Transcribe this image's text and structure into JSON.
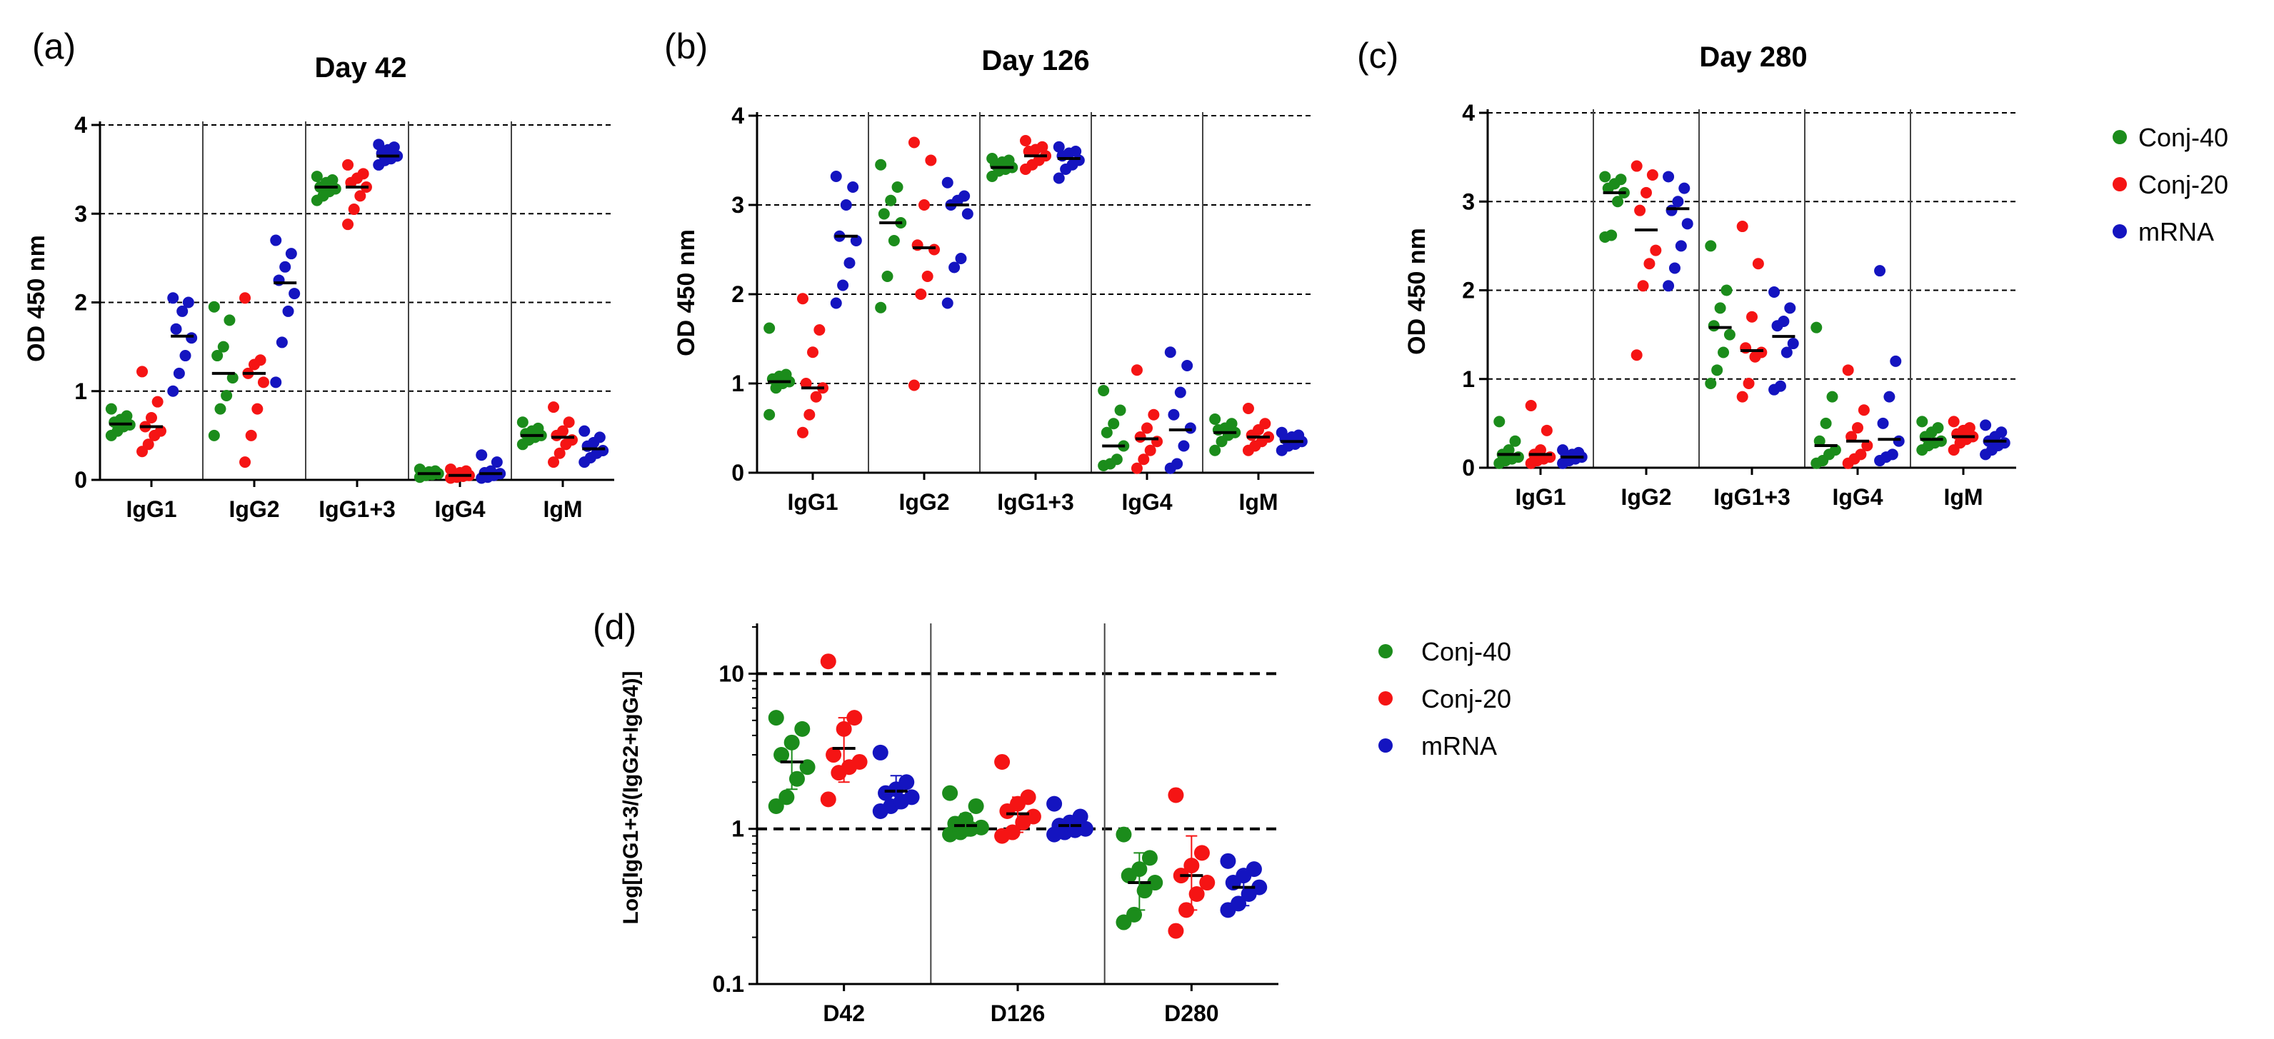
{
  "colors": {
    "Conj-40": "#1b8c1b",
    "Conj-20": "#f51414",
    "mRNA": "#1414c0"
  },
  "legend": {
    "entries": [
      "Conj-40",
      "Conj-20",
      "mRNA"
    ]
  },
  "chart_data": [
    {
      "letter": "(a)",
      "type": "scatter",
      "title": "Day 42",
      "xlabel": "",
      "ylabel": "OD 450 nm",
      "ylim": [
        0,
        4
      ],
      "yticks": [
        "0",
        "1",
        "2",
        "3",
        "4"
      ],
      "yscale": "linear",
      "categories": [
        "IgG1",
        "IgG2",
        "IgG1+3",
        "IgG4",
        "IgM"
      ],
      "series": [
        {
          "name": "Conj-40",
          "means": [
            0.63,
            1.2,
            3.3,
            0.07,
            0.5
          ],
          "values": [
            [
              0.5,
              0.55,
              0.6,
              0.62,
              0.65,
              0.68,
              0.72,
              0.8
            ],
            [
              0.5,
              0.8,
              0.95,
              1.15,
              1.4,
              1.5,
              1.8,
              1.95
            ],
            [
              3.15,
              3.2,
              3.25,
              3.28,
              3.3,
              3.35,
              3.38,
              3.42
            ],
            [
              0.03,
              0.05,
              0.06,
              0.07,
              0.08,
              0.09,
              0.1,
              0.12
            ],
            [
              0.4,
              0.45,
              0.48,
              0.5,
              0.52,
              0.55,
              0.58,
              0.65
            ]
          ]
        },
        {
          "name": "Conj-20",
          "means": [
            0.6,
            1.2,
            3.3,
            0.05,
            0.48
          ],
          "values": [
            [
              0.32,
              0.4,
              0.5,
              0.55,
              0.6,
              0.7,
              0.88,
              1.22
            ],
            [
              0.2,
              0.5,
              0.8,
              1.1,
              1.2,
              1.3,
              1.35,
              2.05
            ],
            [
              2.88,
              3.05,
              3.2,
              3.3,
              3.35,
              3.4,
              3.45,
              3.55
            ],
            [
              0.02,
              0.03,
              0.04,
              0.05,
              0.06,
              0.08,
              0.1,
              0.12
            ],
            [
              0.2,
              0.3,
              0.4,
              0.45,
              0.5,
              0.55,
              0.65,
              0.82
            ]
          ]
        },
        {
          "name": "mRNA",
          "means": [
            1.62,
            2.22,
            3.65,
            0.07,
            0.35
          ],
          "values": [
            [
              1.0,
              1.2,
              1.4,
              1.6,
              1.7,
              1.9,
              2.0,
              2.05
            ],
            [
              1.1,
              1.55,
              1.9,
              2.1,
              2.25,
              2.4,
              2.55,
              2.7
            ],
            [
              3.55,
              3.6,
              3.62,
              3.65,
              3.68,
              3.72,
              3.75,
              3.78
            ],
            [
              0.02,
              0.03,
              0.05,
              0.07,
              0.08,
              0.1,
              0.2,
              0.28
            ],
            [
              0.2,
              0.25,
              0.3,
              0.33,
              0.38,
              0.42,
              0.48,
              0.55
            ]
          ]
        }
      ]
    },
    {
      "letter": "(b)",
      "type": "scatter",
      "title": "Day 126",
      "xlabel": "",
      "ylabel": "OD 450 nm",
      "ylim": [
        0,
        4
      ],
      "yticks": [
        "0",
        "1",
        "2",
        "3",
        "4"
      ],
      "yscale": "linear",
      "categories": [
        "IgG1",
        "IgG2",
        "IgG1+3",
        "IgG4",
        "IgM"
      ],
      "series": [
        {
          "name": "Conj-40",
          "means": [
            1.02,
            2.8,
            3.42,
            0.3,
            0.45
          ],
          "values": [
            [
              0.65,
              0.95,
              1.0,
              1.02,
              1.05,
              1.08,
              1.1,
              1.62
            ],
            [
              1.85,
              2.2,
              2.6,
              2.8,
              2.9,
              3.05,
              3.2,
              3.45
            ],
            [
              3.32,
              3.38,
              3.4,
              3.42,
              3.45,
              3.48,
              3.5,
              3.52
            ],
            [
              0.08,
              0.1,
              0.15,
              0.3,
              0.45,
              0.55,
              0.7,
              0.92
            ],
            [
              0.25,
              0.35,
              0.42,
              0.45,
              0.48,
              0.5,
              0.55,
              0.6
            ]
          ]
        },
        {
          "name": "Conj-20",
          "means": [
            0.95,
            2.52,
            3.55,
            0.38,
            0.4
          ],
          "values": [
            [
              0.45,
              0.65,
              0.85,
              0.95,
              1.0,
              1.35,
              1.6,
              1.95
            ],
            [
              0.98,
              2.0,
              2.2,
              2.5,
              2.55,
              3.0,
              3.5,
              3.7
            ],
            [
              3.4,
              3.45,
              3.5,
              3.55,
              3.6,
              3.62,
              3.65,
              3.72
            ],
            [
              0.05,
              0.15,
              0.25,
              0.35,
              0.4,
              0.5,
              0.65,
              1.15
            ],
            [
              0.25,
              0.3,
              0.35,
              0.4,
              0.42,
              0.48,
              0.55,
              0.72
            ]
          ]
        },
        {
          "name": "mRNA",
          "means": [
            2.65,
            3.0,
            3.52,
            0.48,
            0.35
          ],
          "values": [
            [
              1.9,
              2.1,
              2.35,
              2.6,
              2.65,
              3.0,
              3.2,
              3.32
            ],
            [
              1.9,
              2.3,
              2.4,
              2.9,
              3.0,
              3.05,
              3.1,
              3.25
            ],
            [
              3.3,
              3.4,
              3.45,
              3.5,
              3.55,
              3.58,
              3.6,
              3.65
            ],
            [
              0.05,
              0.1,
              0.3,
              0.5,
              0.65,
              0.9,
              1.2,
              1.35
            ],
            [
              0.25,
              0.3,
              0.32,
              0.35,
              0.38,
              0.4,
              0.42,
              0.45
            ]
          ]
        }
      ]
    },
    {
      "letter": "(c)",
      "type": "scatter",
      "title": "Day 280",
      "xlabel": "",
      "ylabel": "OD 450 nm",
      "ylim": [
        0,
        4
      ],
      "yticks": [
        "0",
        "1",
        "2",
        "3",
        "4"
      ],
      "yscale": "linear",
      "categories": [
        "IgG1",
        "IgG2",
        "IgG1+3",
        "IgG4",
        "IgM"
      ],
      "series": [
        {
          "name": "Conj-40",
          "means": [
            0.15,
            3.1,
            1.58,
            0.25,
            0.32
          ],
          "values": [
            [
              0.05,
              0.08,
              0.1,
              0.12,
              0.15,
              0.2,
              0.3,
              0.52
            ],
            [
              2.6,
              2.62,
              3.0,
              3.1,
              3.15,
              3.2,
              3.25,
              3.28
            ],
            [
              0.95,
              1.1,
              1.3,
              1.5,
              1.6,
              1.8,
              2.0,
              2.5
            ],
            [
              0.05,
              0.08,
              0.15,
              0.2,
              0.3,
              0.5,
              0.8,
              1.58
            ],
            [
              0.2,
              0.25,
              0.28,
              0.3,
              0.35,
              0.4,
              0.45,
              0.52
            ]
          ]
        },
        {
          "name": "Conj-20",
          "means": [
            0.15,
            2.68,
            1.32,
            0.3,
            0.35
          ],
          "values": [
            [
              0.05,
              0.08,
              0.1,
              0.12,
              0.15,
              0.2,
              0.42,
              0.7
            ],
            [
              1.27,
              2.05,
              2.3,
              2.45,
              2.9,
              3.1,
              3.3,
              3.4
            ],
            [
              0.8,
              0.95,
              1.25,
              1.3,
              1.35,
              1.7,
              2.3,
              2.72
            ],
            [
              0.05,
              0.1,
              0.15,
              0.25,
              0.35,
              0.45,
              0.65,
              1.1
            ],
            [
              0.2,
              0.28,
              0.32,
              0.35,
              0.38,
              0.42,
              0.45,
              0.52
            ]
          ]
        },
        {
          "name": "mRNA",
          "means": [
            0.12,
            2.92,
            1.48,
            0.32,
            0.3
          ],
          "values": [
            [
              0.05,
              0.08,
              0.1,
              0.12,
              0.13,
              0.15,
              0.17,
              0.2
            ],
            [
              2.05,
              2.25,
              2.5,
              2.75,
              2.9,
              3.0,
              3.15,
              3.28
            ],
            [
              0.88,
              0.92,
              1.3,
              1.4,
              1.6,
              1.65,
              1.8,
              1.98
            ],
            [
              0.08,
              0.12,
              0.15,
              0.3,
              0.5,
              0.8,
              1.2,
              2.22
            ],
            [
              0.15,
              0.2,
              0.25,
              0.28,
              0.3,
              0.35,
              0.4,
              0.48
            ]
          ]
        }
      ]
    },
    {
      "letter": "(d)",
      "type": "scatter",
      "title": "",
      "xlabel": "",
      "ylabel": "Log[IgG1+3/(IgG2+IgG4)]",
      "ylim": [
        0.1,
        20
      ],
      "yticks": [
        "0.1",
        "1",
        "10"
      ],
      "yscale": "log",
      "reference_lines": [
        1,
        10
      ],
      "categories": [
        "D42",
        "D126",
        "D280"
      ],
      "series": [
        {
          "name": "Conj-40",
          "means": [
            2.7,
            1.05,
            0.45
          ],
          "sd_range": [
            [
              1.8,
              3.8
            ],
            [
              0.9,
              1.25
            ],
            [
              0.3,
              0.7
            ]
          ],
          "values": [
            [
              1.4,
              1.6,
              2.1,
              2.5,
              3.0,
              3.6,
              4.4,
              5.2
            ],
            [
              0.92,
              0.95,
              1.0,
              1.02,
              1.08,
              1.15,
              1.4,
              1.7
            ],
            [
              0.25,
              0.28,
              0.4,
              0.45,
              0.5,
              0.55,
              0.65,
              0.92
            ]
          ]
        },
        {
          "name": "Conj-20",
          "means": [
            3.3,
            1.25,
            0.5
          ],
          "sd_range": [
            [
              2.0,
              5.2
            ],
            [
              0.95,
              1.6
            ],
            [
              0.3,
              0.9
            ]
          ],
          "values": [
            [
              1.55,
              2.3,
              2.5,
              2.7,
              3.0,
              4.4,
              5.2,
              12
            ],
            [
              0.9,
              0.95,
              1.1,
              1.2,
              1.3,
              1.45,
              1.6,
              2.7
            ],
            [
              0.22,
              0.3,
              0.38,
              0.45,
              0.5,
              0.58,
              0.7,
              1.65
            ]
          ]
        },
        {
          "name": "mRNA",
          "means": [
            1.75,
            1.05,
            0.42
          ],
          "sd_range": [
            [
              1.35,
              2.2
            ],
            [
              0.95,
              1.15
            ],
            [
              0.32,
              0.52
            ]
          ],
          "values": [
            [
              1.3,
              1.4,
              1.5,
              1.6,
              1.7,
              1.8,
              2.0,
              3.1
            ],
            [
              0.92,
              0.95,
              0.98,
              1.0,
              1.05,
              1.1,
              1.2,
              1.45
            ],
            [
              0.3,
              0.33,
              0.38,
              0.42,
              0.45,
              0.5,
              0.55,
              0.62
            ]
          ]
        }
      ]
    }
  ]
}
